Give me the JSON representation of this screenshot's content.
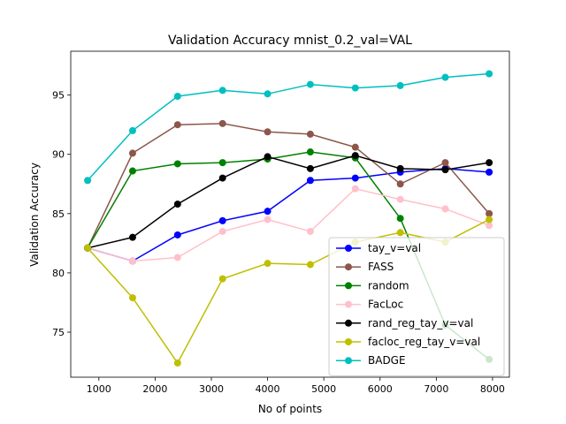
{
  "chart_data": {
    "type": "line",
    "title": "Validation Accuracy mnist_0.2_val=VAL",
    "xlabel": "No of points",
    "ylabel": "Validation Accuracy",
    "xlim": [
      500,
      8300
    ],
    "ylim": [
      71.2,
      98.7
    ],
    "xticks": [
      1000,
      2000,
      3000,
      4000,
      5000,
      6000,
      7000,
      8000
    ],
    "yticks": [
      75,
      80,
      85,
      90,
      95
    ],
    "grid": false,
    "legend_position": "lower right",
    "x": [
      800,
      1600,
      2400,
      3200,
      4000,
      4760,
      5560,
      6360,
      7160,
      7940
    ],
    "series": [
      {
        "name": "tay_v=val",
        "color": "#0000ff",
        "values": [
          82.1,
          81.0,
          83.2,
          84.4,
          85.2,
          87.8,
          88.0,
          88.5,
          88.8,
          88.5
        ]
      },
      {
        "name": "FASS",
        "color": "#8c564b",
        "values": [
          82.1,
          90.1,
          92.5,
          92.6,
          91.9,
          91.7,
          90.6,
          87.5,
          89.3,
          85.0
        ]
      },
      {
        "name": "random",
        "color": "#008000",
        "values": [
          82.1,
          88.6,
          89.2,
          89.3,
          89.6,
          90.2,
          89.7,
          84.6,
          75.6,
          72.7
        ]
      },
      {
        "name": "FacLoc",
        "color": "#ffc0cb",
        "values": [
          82.1,
          81.0,
          81.3,
          83.5,
          84.5,
          83.5,
          87.1,
          86.2,
          85.4,
          84.0
        ]
      },
      {
        "name": "rand_reg_tay_v=val",
        "color": "#000000",
        "values": [
          82.1,
          83.0,
          85.8,
          88.0,
          89.8,
          88.8,
          89.9,
          88.8,
          88.7,
          89.3
        ]
      },
      {
        "name": "facloc_reg_tay_v=val",
        "color": "#bfbf00",
        "values": [
          82.1,
          77.9,
          72.4,
          79.5,
          80.8,
          80.7,
          82.6,
          83.4,
          82.6,
          84.5
        ]
      },
      {
        "name": "BADGE",
        "color": "#00bfbf",
        "values": [
          87.8,
          92.0,
          94.9,
          95.4,
          95.1,
          95.9,
          95.6,
          95.8,
          96.5,
          96.8
        ]
      }
    ]
  }
}
